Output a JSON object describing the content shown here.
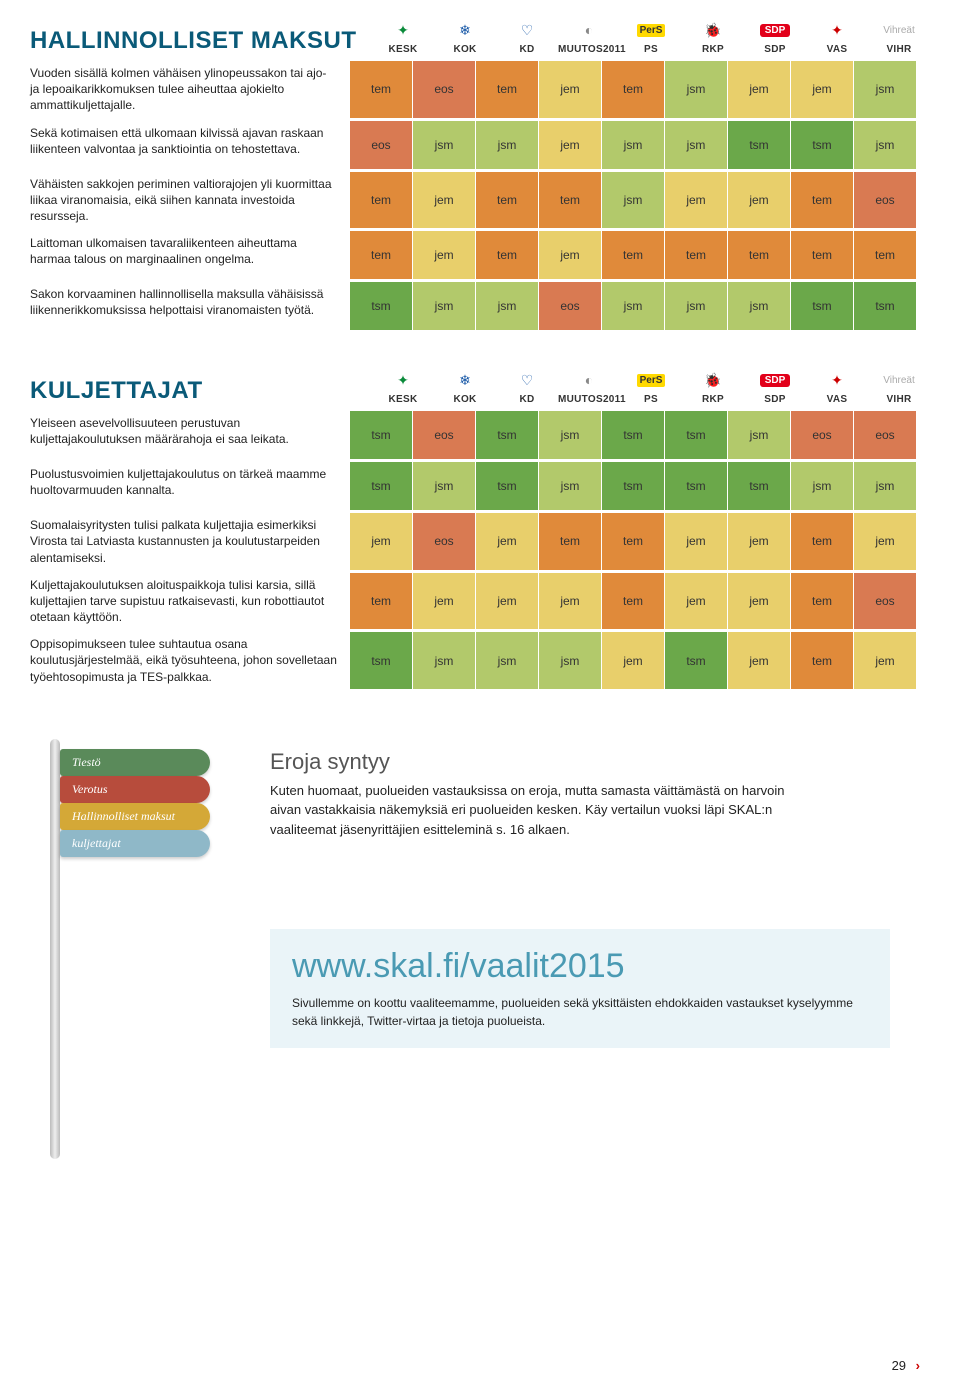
{
  "parties": [
    "KESK",
    "KOK",
    "KD",
    "MUUTOS2011",
    "PS",
    "RKP",
    "SDP",
    "VAS",
    "VIHR"
  ],
  "colors": {
    "title": "#0a5a78",
    "tem": "#e08a3a",
    "jem": "#e8cf6b",
    "jsm": "#b2c96b",
    "tsm": "#6ba84a",
    "eos": "#d97a52"
  },
  "sections": [
    {
      "title": "HALLINNOLLISET MAKSUT",
      "rows": [
        {
          "text": "Vuoden sisällä kolmen vähäisen ylinopeussakon tai ajo- ja lepoaikarikkomuksen tulee aiheuttaa ajokielto ammattikuljettajalle.",
          "cells": [
            "tem",
            "eos",
            "tem",
            "jem",
            "tem",
            "jsm",
            "jem",
            "jem",
            "jsm"
          ]
        },
        {
          "text": "Sekä kotimaisen että ulkomaan kilvissä ajavan raskaan liikenteen valvontaa ja sanktiointia on tehostettava.",
          "cells": [
            "eos",
            "jsm",
            "jsm",
            "jem",
            "jsm",
            "jsm",
            "tsm",
            "tsm",
            "jsm"
          ]
        },
        {
          "text": "Vähäisten sakkojen periminen valtiorajojen yli kuormittaa liikaa viranomaisia, eikä siihen kannata investoida resursseja.",
          "cells": [
            "tem",
            "jem",
            "tem",
            "tem",
            "jsm",
            "jem",
            "jem",
            "tem",
            "eos"
          ]
        },
        {
          "text": "Laittoman ulkomaisen tavaraliikenteen aiheuttama harmaa talous on marginaalinen ongelma.",
          "cells": [
            "tem",
            "jem",
            "tem",
            "jem",
            "tem",
            "tem",
            "tem",
            "tem",
            "tem"
          ]
        },
        {
          "text": "Sakon korvaaminen hallinnollisella maksulla vähäisissä liikennerikkomuksissa helpottaisi viranomaisten työtä.",
          "cells": [
            "tsm",
            "jsm",
            "jsm",
            "eos",
            "jsm",
            "jsm",
            "jsm",
            "tsm",
            "tsm"
          ]
        }
      ]
    },
    {
      "title": "KULJETTAJAT",
      "rows": [
        {
          "text": "Yleiseen asevelvollisuuteen perustuvan kuljettajakoulutuksen määrärahoja ei saa leikata.",
          "cells": [
            "tsm",
            "eos",
            "tsm",
            "jsm",
            "tsm",
            "tsm",
            "jsm",
            "eos",
            "eos"
          ]
        },
        {
          "text": "Puolustusvoimien kuljettajakoulutus on tärkeä maamme huoltovarmuuden kannalta.",
          "cells": [
            "tsm",
            "jsm",
            "tsm",
            "jsm",
            "tsm",
            "tsm",
            "tsm",
            "jsm",
            "jsm"
          ]
        },
        {
          "text": "Suomalaisyritysten tulisi palkata kuljettajia esimerkiksi Virosta tai Latviasta kustannusten ja koulutustarpeiden alentamiseksi.",
          "cells": [
            "jem",
            "eos",
            "jem",
            "tem",
            "tem",
            "jem",
            "jem",
            "tem",
            "jem"
          ]
        },
        {
          "text": "Kuljettajakoulutuksen aloituspaikkoja tulisi karsia, sillä kuljettajien tarve supistuu ratkaisevasti, kun robottiautot otetaan käyttöön.",
          "cells": [
            "tem",
            "jem",
            "jem",
            "jem",
            "tem",
            "jem",
            "jem",
            "tem",
            "eos"
          ]
        },
        {
          "text": "Oppisopimukseen tulee suhtautua osana koulutusjärjestelmää, eikä työsuhteena, johon sovelletaan työehtosopimusta ja TES-palkkaa.",
          "cells": [
            "tsm",
            "jsm",
            "jsm",
            "jsm",
            "jem",
            "tsm",
            "jem",
            "tem",
            "jem"
          ]
        }
      ]
    }
  ],
  "signs": [
    {
      "label": "Tiestö",
      "color": "#5a8a5a"
    },
    {
      "label": "Verotus",
      "color": "#b74c3c"
    },
    {
      "label": "Hallinnolliset maksut",
      "color": "#d4a837"
    },
    {
      "label": "kuljettajat",
      "color": "#8fb8c8"
    }
  ],
  "eroja": {
    "title": "Eroja syntyy",
    "text": "Kuten huomaat, puolueiden vastauksissa on eroja, mutta samasta väittämästä on harvoin aivan vastakkaisia näkemyksiä eri puolueiden kesken. Käy vertailun vuoksi läpi SKAL:n vaaliteemat jäsenyrittäjien esitteleminä s. 16 alkaen."
  },
  "urlbox": {
    "title": "www.skal.fi/vaalit2015",
    "text": "Sivullemme on koottu vaaliteemamme, puolueiden sekä yksittäisten ehdokkaiden vastaukset kyselyymme sekä linkkejä, Twitter-virtaa ja tietoja puolueista."
  },
  "pageNumber": "29"
}
